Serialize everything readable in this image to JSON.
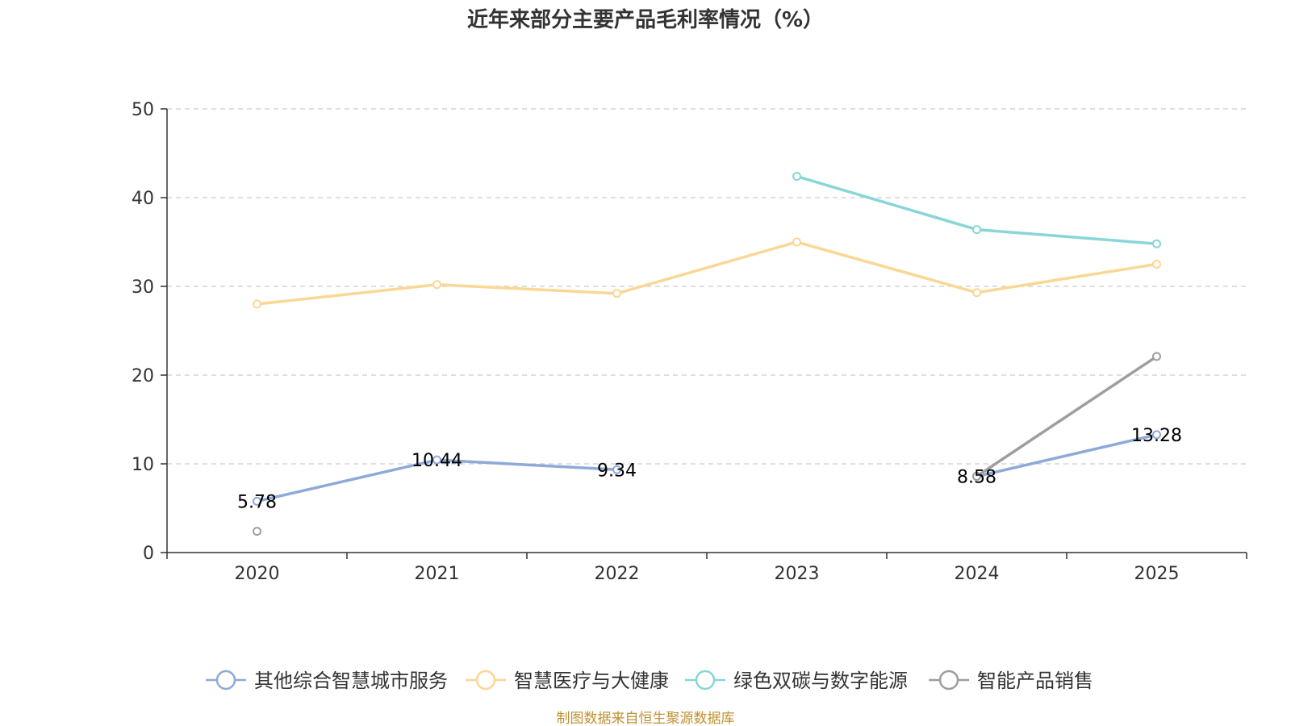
{
  "chart_data": {
    "type": "line",
    "title": "近年来部分主要产品毛利率情况（%）",
    "categories": [
      "2020",
      "2021",
      "2022",
      "2023",
      "2024",
      "2025"
    ],
    "ylim": [
      0,
      50
    ],
    "yticks": [
      0,
      10,
      20,
      30,
      40,
      50
    ],
    "grid": true,
    "legend_position": "bottom",
    "series": [
      {
        "name": "其他综合智慧城市服务",
        "color": "#8fa9d8",
        "values": [
          5.78,
          10.44,
          9.34,
          null,
          8.58,
          13.28
        ],
        "labels": [
          "5.78",
          "10.44",
          "9.34",
          null,
          "8.58",
          "13.28"
        ]
      },
      {
        "name": "智慧医疗与大健康",
        "color": "#fad794",
        "values": [
          28.0,
          30.2,
          29.2,
          35.0,
          29.3,
          32.5
        ],
        "labels": [
          null,
          null,
          null,
          null,
          null,
          null
        ]
      },
      {
        "name": "绿色双碳与数字能源",
        "color": "#88d6d8",
        "values": [
          null,
          null,
          null,
          42.4,
          36.4,
          34.8
        ],
        "labels": [
          null,
          null,
          null,
          null,
          null,
          null
        ]
      },
      {
        "name": "智能产品销售",
        "color": "#9e9e9e",
        "values": [
          2.4,
          null,
          null,
          null,
          8.6,
          22.1
        ],
        "labels": [
          null,
          null,
          null,
          null,
          null,
          null
        ]
      }
    ]
  },
  "footer": {
    "source": "制图数据来自恒生聚源数据库"
  }
}
